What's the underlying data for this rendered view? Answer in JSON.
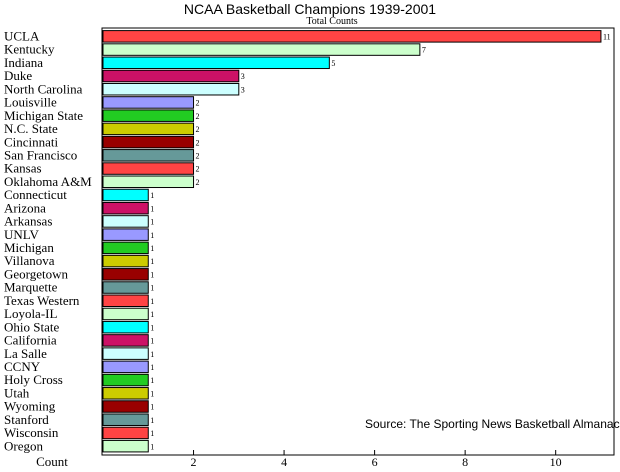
{
  "chart_data": {
    "type": "bar",
    "orientation": "horizontal",
    "title": "NCAA Basketball Champions 1939-2001",
    "subtitle": "Total Counts",
    "xlabel": "Count",
    "source": "Source: The Sporting News Basketball Almanac",
    "xlim": [
      0,
      11.2
    ],
    "xticks": [
      2,
      4,
      6,
      8,
      10
    ],
    "grid": false,
    "categories": [
      "UCLA",
      "Kentucky",
      "Indiana",
      "Duke",
      "North Carolina",
      "Louisville",
      "Michigan State",
      "N.C. State",
      "Cincinnati",
      "San Francisco",
      "Kansas",
      "Oklahoma A&M",
      "Connecticut",
      "Arizona",
      "Arkansas",
      "UNLV",
      "Michigan",
      "Villanova",
      "Georgetown",
      "Marquette",
      "Texas Western",
      "Loyola-IL",
      "Ohio State",
      "California",
      "La Salle",
      "CCNY",
      "Holy Cross",
      "Utah",
      "Wyoming",
      "Stanford",
      "Wisconsin",
      "Oregon"
    ],
    "values": [
      11,
      7,
      5,
      3,
      3,
      2,
      2,
      2,
      2,
      2,
      2,
      2,
      1,
      1,
      1,
      1,
      1,
      1,
      1,
      1,
      1,
      1,
      1,
      1,
      1,
      1,
      1,
      1,
      1,
      1,
      1,
      1
    ],
    "colors": [
      "#ff4444",
      "#ccffcc",
      "#00ffff",
      "#cc1166",
      "#ccffff",
      "#9999ff",
      "#22cc22",
      "#cccc00",
      "#990000",
      "#669999"
    ]
  }
}
